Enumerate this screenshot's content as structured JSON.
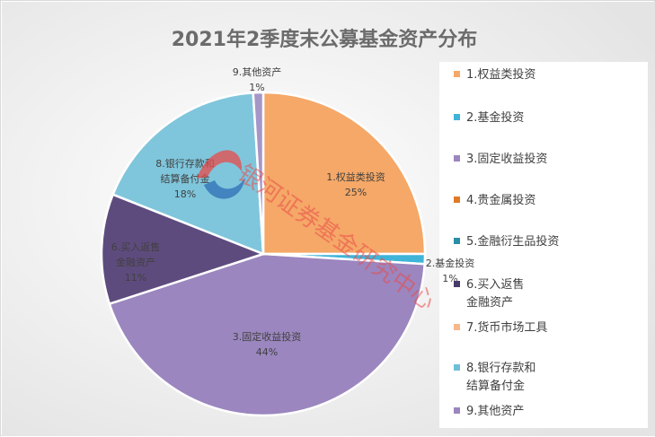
{
  "chart_data": {
    "type": "pie",
    "title": "2021年2季度末公募基金资产分布",
    "slices": [
      {
        "name": "1.权益类投资",
        "value": 25,
        "label": "1.权益类投资",
        "pct": "25%",
        "color": "#f5a867"
      },
      {
        "name": "2.基金投资",
        "value": 1,
        "label": "2.基金投资",
        "pct": "1%",
        "color": "#3fb4d8"
      },
      {
        "name": "3.固定收益投资",
        "value": 44,
        "label": "3.固定收益投资",
        "pct": "44%",
        "color": "#9b86bf"
      },
      {
        "name": "6.买入返售金融资产",
        "value": 11,
        "label": "6.买入返售\n金融资产",
        "pct": "11%",
        "color": "#5e4b7e"
      },
      {
        "name": "8.银行存款和结算备付金",
        "value": 18,
        "label": "8.银行存款和\n结算备付金",
        "pct": "18%",
        "color": "#7fc6dc"
      },
      {
        "name": "9.其他资产",
        "value": 1,
        "label": "9.其他资产",
        "pct": "1%",
        "color": "#a596c8"
      }
    ],
    "legend_position": "right",
    "legend": [
      {
        "label": "1.权益类投资",
        "color": "#f5a867"
      },
      {
        "label": "2.基金投资",
        "color": "#3fb4d8"
      },
      {
        "label": "3.固定收益投资",
        "color": "#9b86bf"
      },
      {
        "label": "4.贵金属投资",
        "color": "#e07a26"
      },
      {
        "label": "5.金融衍生品投资",
        "color": "#2a8fa6"
      },
      {
        "label": "6.买入返售\n金融资产",
        "color": "#4a3a6a"
      },
      {
        "label": "7.货币市场工具",
        "color": "#f7b98a"
      },
      {
        "label": "8.银行存款和\n结算备付金",
        "color": "#6fbfd9"
      },
      {
        "label": "9.其他资产",
        "color": "#9b86bf"
      }
    ]
  },
  "watermark": {
    "text": "银河证券基金研究中心",
    "logo_colors": [
      "#e84a4a",
      "#2d6db5"
    ]
  }
}
